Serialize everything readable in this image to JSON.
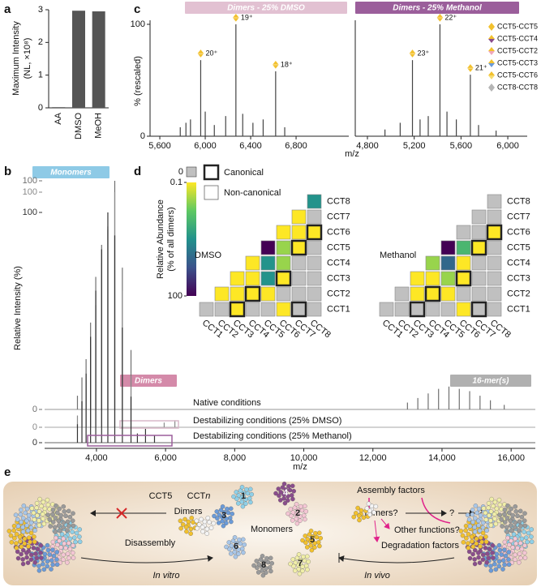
{
  "chart_data": [
    {
      "type": "bar",
      "label": "a",
      "y_label": "Maximum Intensity",
      "y_label_2": "(NL, ×10⁸)",
      "categories": [
        "AA",
        "DMSO",
        "MeOH"
      ],
      "values": [
        0.02,
        2.97,
        2.95
      ],
      "color": "#555555",
      "ylim": [
        0,
        3
      ],
      "yticks": [
        0,
        1,
        2,
        3
      ]
    },
    {
      "type": "spectrum",
      "label": "b",
      "banners": [
        {
          "text": "Monomers",
          "color": "#8ecae6"
        },
        {
          "text": "Dimers",
          "color": "#d48aa9"
        },
        {
          "text": "16-mer(s)",
          "color": "#b0b0b0"
        }
      ],
      "y_label": "Relative Intensity (%)",
      "x_label": "m/z",
      "xlim": [
        2500,
        16700
      ],
      "xticks": [
        {
          "value": 4000,
          "label": "4,000"
        },
        {
          "value": 6000,
          "label": "6,000"
        },
        {
          "value": 8000,
          "label": "8,000"
        },
        {
          "value": 10000,
          "label": "10,000"
        },
        {
          "value": 12000,
          "label": "12,000"
        },
        {
          "value": 14000,
          "label": "14,000"
        },
        {
          "value": 16000,
          "label": "16,000"
        }
      ],
      "series": [
        {
          "name": "Native conditions",
          "color": "#707070",
          "ylim": [
            0,
            100
          ],
          "yticks": [
            0,
            100
          ],
          "x": [
            3450,
            3580,
            3700,
            3830,
            3980,
            4150,
            4330,
            4530,
            4750,
            5000,
            13000,
            13300,
            13600,
            13900,
            14200,
            14500,
            14800,
            15100,
            15400,
            15800
          ],
          "values": [
            6,
            14,
            22,
            38,
            58,
            72,
            80,
            100,
            62,
            26,
            3,
            5,
            7,
            9,
            10,
            9,
            8,
            6,
            4,
            2
          ]
        },
        {
          "name": "Destabilizing conditions (25% DMSO)",
          "color": "#8a8a8a",
          "ylim": [
            0,
            100
          ],
          "yticks": [
            0,
            100
          ],
          "highlight_color": "#d8b8c8",
          "x": [
            3450,
            3580,
            3700,
            3830,
            3980,
            4150,
            4330,
            4530,
            4750,
            5000,
            5960,
            6270
          ],
          "values": [
            5,
            12,
            20,
            34,
            52,
            70,
            84,
            100,
            58,
            22,
            2,
            3
          ]
        },
        {
          "name": "Destabilizing conditions (25% Methanol)",
          "color": "#333333",
          "ylim": [
            0,
            100
          ],
          "yticks": [
            0,
            100
          ],
          "highlight_color": "#9b5e9b",
          "x": [
            3450,
            3580,
            3700,
            3830,
            3980,
            4150,
            4330,
            4530,
            4750,
            5000,
            5185,
            5420,
            5680
          ],
          "values": [
            8,
            18,
            30,
            46,
            66,
            84,
            100,
            90,
            50,
            20,
            4,
            6,
            3
          ]
        }
      ]
    },
    {
      "type": "spectrum",
      "label": "c",
      "banner": {
        "text": "Dimers - 25% DMSO",
        "color": "#e2c1d2"
      },
      "y_label": "% (rescaled)",
      "x_label": "m/z",
      "xlim": [
        5514,
        7264
      ],
      "xticks": [
        {
          "value": 5600,
          "label": "5,600"
        },
        {
          "value": 6000,
          "label": "6,000"
        },
        {
          "value": 6400,
          "label": "6,400"
        },
        {
          "value": 6800,
          "label": "6,800"
        }
      ],
      "ylim": [
        0,
        100
      ],
      "yticks": [
        0,
        100
      ],
      "series": [
        {
          "color": "#444444",
          "x": [
            5780,
            5830,
            5870,
            5960,
            6000,
            6080,
            6180,
            6270,
            6330,
            6420,
            6510,
            6620,
            6700
          ],
          "values": [
            8,
            12,
            15,
            68,
            22,
            10,
            18,
            100,
            20,
            12,
            15,
            58,
            8
          ],
          "peak_labels": [
            null,
            null,
            null,
            "20⁺",
            null,
            null,
            null,
            "19⁺",
            null,
            null,
            null,
            "18⁺",
            null
          ]
        }
      ]
    },
    {
      "type": "spectrum",
      "banner": {
        "text": "Dimers - 25% Methanol",
        "color": "#9b5e9b"
      },
      "xlim": [
        4696,
        6166
      ],
      "xticks": [
        {
          "value": 4800,
          "label": "4,800"
        },
        {
          "value": 5200,
          "label": "5,200"
        },
        {
          "value": 5600,
          "label": "5,600"
        },
        {
          "value": 6000,
          "label": "6,000"
        }
      ],
      "ylim": [
        0,
        100
      ],
      "series": [
        {
          "color": "#444444",
          "x": [
            4950,
            5080,
            5185,
            5250,
            5320,
            5420,
            5480,
            5560,
            5680,
            5750,
            5900
          ],
          "values": [
            6,
            12,
            68,
            15,
            18,
            100,
            22,
            15,
            55,
            10,
            5
          ],
          "peak_labels": [
            null,
            null,
            "23⁺",
            null,
            null,
            "22⁺",
            null,
            null,
            "21⁺",
            null,
            null
          ]
        }
      ],
      "legend": [
        {
          "name": "CCT5-CCT5",
          "colors": [
            "#f2c12e",
            "#f2c12e"
          ]
        },
        {
          "name": "CCT5-CCT4",
          "colors": [
            "#f2c12e",
            "#8a4d8c"
          ]
        },
        {
          "name": "CCT5-CCT2",
          "colors": [
            "#f2c12e",
            "#f0a8bc"
          ]
        },
        {
          "name": "CCT5-CCT3",
          "colors": [
            "#f2c12e",
            "#6b9bd8"
          ]
        },
        {
          "name": "CCT5-CCT6",
          "colors": [
            "#f2c12e",
            "#f7dc6f"
          ]
        },
        {
          "name": "CCT8-CCT8",
          "colors": [
            "#b5b5b5",
            "#b5b5b5"
          ]
        }
      ]
    },
    {
      "type": "heatmap",
      "label": "d",
      "title": "DMSO",
      "colormap": "viridis",
      "log_scale": true,
      "z_label": "Relative Abundance",
      "z_label_2": "(% of all dimers)",
      "zlim": [
        0.1,
        100
      ],
      "zticks": [
        0.1,
        100
      ],
      "zero_label": "0",
      "zero_color": "#c0c0c0",
      "legend": [
        "Canonical",
        "Non-canonical"
      ],
      "rows": [
        "CCT8",
        "CCT7",
        "CCT6",
        "CCT5",
        "CCT4",
        "CCT3",
        "CCT2",
        "CCT1"
      ],
      "columns": [
        "CCT1",
        "CCT2",
        "CCT3",
        "CCT4",
        "CCT5",
        "CCT6",
        "CCT7",
        "CCT8"
      ],
      "values": [
        [
          null,
          null,
          null,
          null,
          null,
          null,
          null,
          3
        ],
        [
          null,
          null,
          null,
          null,
          null,
          null,
          0.1,
          0
        ],
        [
          null,
          null,
          null,
          null,
          null,
          0.1,
          0.1,
          0.1
        ],
        [
          null,
          null,
          null,
          null,
          100,
          0.3,
          0.1,
          0
        ],
        [
          null,
          null,
          null,
          0.1,
          3,
          0.3,
          0,
          0
        ],
        [
          null,
          null,
          0.1,
          0.1,
          3,
          0.1,
          0,
          0
        ],
        [
          null,
          0.1,
          0.1,
          0.1,
          0.1,
          0,
          0,
          0
        ],
        [
          0,
          0,
          0.1,
          0,
          0,
          0.1,
          0,
          0
        ]
      ],
      "canonical": [
        [
          false,
          false,
          false,
          false,
          false,
          false,
          false,
          false
        ],
        [
          false,
          false,
          false,
          false,
          false,
          false,
          false,
          false
        ],
        [
          false,
          false,
          false,
          false,
          false,
          false,
          false,
          true
        ],
        [
          false,
          false,
          false,
          false,
          false,
          false,
          true,
          false
        ],
        [
          false,
          false,
          false,
          false,
          false,
          false,
          false,
          false
        ],
        [
          false,
          false,
          false,
          false,
          false,
          true,
          false,
          false
        ],
        [
          false,
          false,
          false,
          true,
          false,
          false,
          false,
          false
        ],
        [
          false,
          false,
          true,
          false,
          false,
          false,
          true,
          false
        ]
      ]
    },
    {
      "type": "heatmap",
      "title": "Methanol",
      "colormap": "viridis",
      "log_scale": true,
      "zlim": [
        0.1,
        100
      ],
      "zero_color": "#c0c0c0",
      "rows": [
        "CCT8",
        "CCT7",
        "CCT6",
        "CCT5",
        "CCT4",
        "CCT3",
        "CCT2",
        "CCT1"
      ],
      "columns": [
        "CCT1",
        "CCT2",
        "CCT3",
        "CCT4",
        "CCT5",
        "CCT6",
        "CCT7",
        "CCT8"
      ],
      "values": [
        [
          null,
          null,
          null,
          null,
          null,
          null,
          null,
          0
        ],
        [
          null,
          null,
          null,
          null,
          null,
          null,
          0,
          0
        ],
        [
          null,
          null,
          null,
          null,
          null,
          0,
          0,
          0.1
        ],
        [
          null,
          null,
          null,
          null,
          100,
          1,
          0.1,
          0
        ],
        [
          null,
          null,
          null,
          0.3,
          10,
          0.1,
          0,
          0
        ],
        [
          null,
          null,
          0.1,
          0.1,
          0.3,
          0.1,
          0,
          0
        ],
        [
          null,
          0,
          0.1,
          0.1,
          0.1,
          0,
          0,
          0
        ],
        [
          0,
          0,
          0,
          0,
          0,
          0.1,
          0,
          0
        ]
      ],
      "canonical": [
        [
          false,
          false,
          false,
          false,
          false,
          false,
          false,
          false
        ],
        [
          false,
          false,
          false,
          false,
          false,
          false,
          false,
          false
        ],
        [
          false,
          false,
          false,
          false,
          false,
          false,
          false,
          true
        ],
        [
          false,
          false,
          false,
          false,
          false,
          false,
          true,
          false
        ],
        [
          false,
          false,
          false,
          false,
          false,
          false,
          false,
          false
        ],
        [
          false,
          false,
          false,
          false,
          false,
          true,
          false,
          false
        ],
        [
          false,
          false,
          false,
          true,
          false,
          false,
          false,
          false
        ],
        [
          false,
          false,
          true,
          false,
          false,
          false,
          true,
          false
        ]
      ]
    }
  ],
  "diagram": {
    "label": "e",
    "cct5": "CCT5",
    "cctn": "CCT",
    "cctn_italic": "n",
    "dimers": "Dimers",
    "monomers": "Monomers",
    "disassembly": "Disassembly",
    "in_vitro": "In vitro",
    "in_vivo": "In vivo",
    "assembly_factors": "Assembly factors",
    "dimers_q": "Dimers?",
    "q1": "?",
    "q2": "?",
    "other_functions": "Other functions?",
    "degradation_factors": "Degradation factors",
    "monomer_ids": [
      "1",
      "2",
      "3",
      "4",
      "5",
      "6",
      "7",
      "8"
    ]
  }
}
